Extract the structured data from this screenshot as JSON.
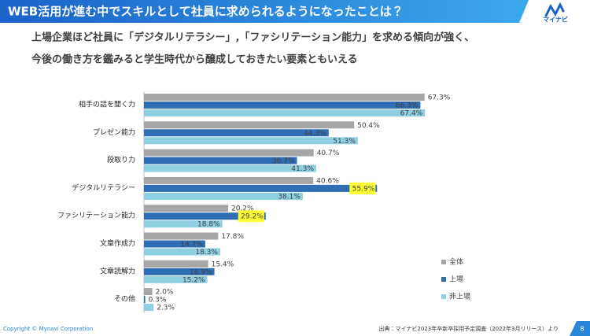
{
  "header": {
    "title": "WEB活用が進む中でスキルとして社員に求められるようになったことは？",
    "logo": "マイナビ"
  },
  "subtitle": [
    "上場企業ほど社員に「デジタルリテラシー」,「ファシリテーション能力」を求める傾向が強く、",
    "今後の働き方を鑑みると学生時代から醸成しておきたい要素ともいえる"
  ],
  "footer": {
    "copyright": "Copyright © Mynavi Corporation",
    "source": "出典：マイナビ2023年卒新卒採用予定調査（2022年3月リリース）より",
    "page": "8"
  },
  "chart_data": {
    "type": "hbar",
    "categories": [
      "相手の話を聞く力",
      "プレゼン能力",
      "段取り力",
      "デジタルリテラシー",
      "ファシリテーション能力",
      "文章作成力",
      "文章読解力",
      "その他"
    ],
    "series": [
      {
        "name": "全体",
        "color": "#a6a6a6",
        "values": [
          67.3,
          50.4,
          40.7,
          40.6,
          20.2,
          17.8,
          15.4,
          2.0
        ],
        "value_labels": [
          "67.3%",
          "50.4%",
          "40.7%",
          "40.6%",
          "20.2%",
          "17.8%",
          "15.4%",
          "2.0%"
        ]
      },
      {
        "name": "上場",
        "color": "#2f6db5",
        "values": [
          66.3,
          44.3,
          36.7,
          55.9,
          29.2,
          14.7,
          16.9,
          0.3
        ],
        "value_labels": [
          "66.3%",
          "44.3%",
          "36.7%",
          "55.9%",
          "29.2%",
          "14.7%",
          "16.9%",
          "0.3%"
        ],
        "highlight": [
          false,
          false,
          false,
          true,
          true,
          false,
          false,
          false
        ]
      },
      {
        "name": "非上場",
        "color": "#8ecfe2",
        "values": [
          67.4,
          51.3,
          41.3,
          38.1,
          18.8,
          18.3,
          15.2,
          2.3
        ],
        "value_labels": [
          "67.4%",
          "51.3%",
          "41.3%",
          "38.1%",
          "18.8%",
          "18.3%",
          "15.2%",
          "2.3%"
        ]
      }
    ],
    "highlight_color": "#ffff33",
    "legend": "lower-right"
  }
}
